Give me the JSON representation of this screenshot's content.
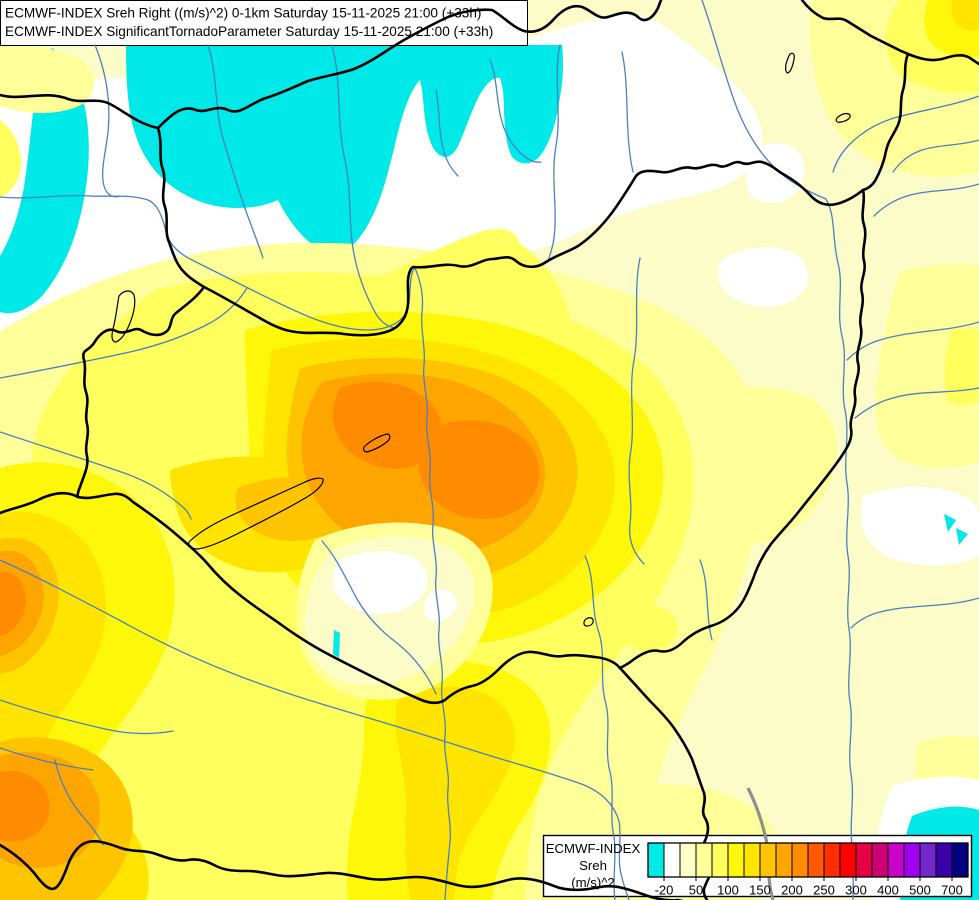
{
  "title_box": {
    "line1": "ECMWF-INDEX Sreh Right ((m/s)^2) 0-1km Saturday 15-11-2025 21:00 (+33h)",
    "line2": "ECMWF-INDEX SignificantTornadoParameter Saturday 15-11-2025 21:00 (+33h)"
  },
  "legend": {
    "title": "ECMWF-INDEX",
    "subtitle": "Sreh",
    "units": "(m/s)^2",
    "tick_labels": [
      "-20",
      "50",
      "100",
      "150",
      "200",
      "250",
      "300",
      "400",
      "500",
      "700"
    ],
    "scale_colors": [
      "#00E9E9",
      "#FFFFFF",
      "#FFFFC8",
      "#FFFF99",
      "#FFFF5E",
      "#FFF70A",
      "#FFE400",
      "#FFC400",
      "#FFA500",
      "#FF8C00",
      "#FF5A00",
      "#FF2D00",
      "#FF0000",
      "#E60046",
      "#CE0073",
      "#C800C8",
      "#A000F0",
      "#7228CC",
      "#3C00AA",
      "#000080"
    ]
  },
  "map_colors": {
    "base_fill": "#FCFCC8",
    "negative_area": "#00E9E9",
    "neutral_area": "#FFFFFF",
    "river": "#4A80C2",
    "border": "#000000",
    "gray_river": "#8F8F8F"
  }
}
